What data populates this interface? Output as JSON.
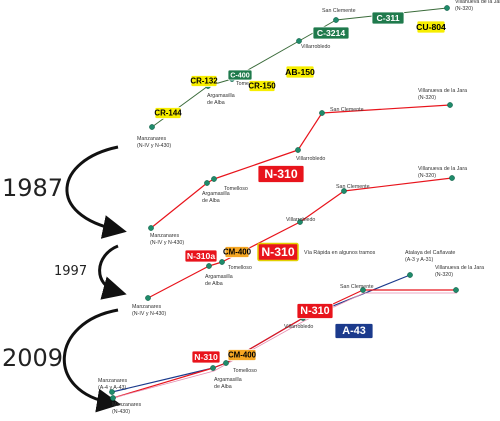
{
  "years": [
    "1987",
    "1997",
    "2009"
  ],
  "panels": [
    {
      "towns": [
        {
          "name": "Manzanares",
          "note": "(N-IV y N-430)"
        },
        {
          "name": "Argamasilla",
          "note": "de Alba"
        },
        {
          "name": "Tomelloso"
        },
        {
          "name": "Villarrobledo"
        },
        {
          "name": "San Clemente"
        },
        {
          "name": "Villanueva de la Jara",
          "note": "(N-320)"
        }
      ],
      "signs": [
        "CR-144",
        "CR-132",
        "C-400",
        "CR-150",
        "AB-150",
        "C-3214",
        "C-311",
        "CU-804"
      ]
    },
    {
      "towns": [
        {
          "name": "Manzanares",
          "note": "(N-IV y N-430)"
        },
        {
          "name": "Argamasilla",
          "note": "de Alba"
        },
        {
          "name": "Tomelloso"
        },
        {
          "name": "Villarrobledo"
        },
        {
          "name": "San Clemente"
        },
        {
          "name": "Villanueva de la Jara",
          "note": "(N-320)"
        }
      ],
      "signs": [
        "N-310"
      ]
    },
    {
      "towns": [
        {
          "name": "Manzanares",
          "note": "(N-IV y N-430)"
        },
        {
          "name": "Argamasilla",
          "note": "de Alba"
        },
        {
          "name": "Tomelloso"
        },
        {
          "name": "Villarrobledo"
        },
        {
          "name": "San Clemente"
        },
        {
          "name": "Villanueva de la Jara",
          "note": "(N-320)"
        }
      ],
      "signs": [
        "N-310a",
        "CM-400",
        "N-310"
      ],
      "annotation": "Vía Rápida en algunos tramos"
    },
    {
      "towns": [
        {
          "name": "Manzanares",
          "note": "(A-4 y A-43)"
        },
        {
          "name": "Manzanares",
          "note": "(N-430)"
        },
        {
          "name": "Argamasilla",
          "note": "de Alba"
        },
        {
          "name": "Tomelloso"
        },
        {
          "name": "Villarrobledo"
        },
        {
          "name": "San Clemente"
        },
        {
          "name": "Atalaya del Cañavate",
          "note": "(A-3 y A-31)"
        },
        {
          "name": "Villanueva de la Jara",
          "note": "(N-320)"
        }
      ],
      "signs": [
        "N-310",
        "CM-400",
        "N-310",
        "A-43"
      ]
    }
  ]
}
